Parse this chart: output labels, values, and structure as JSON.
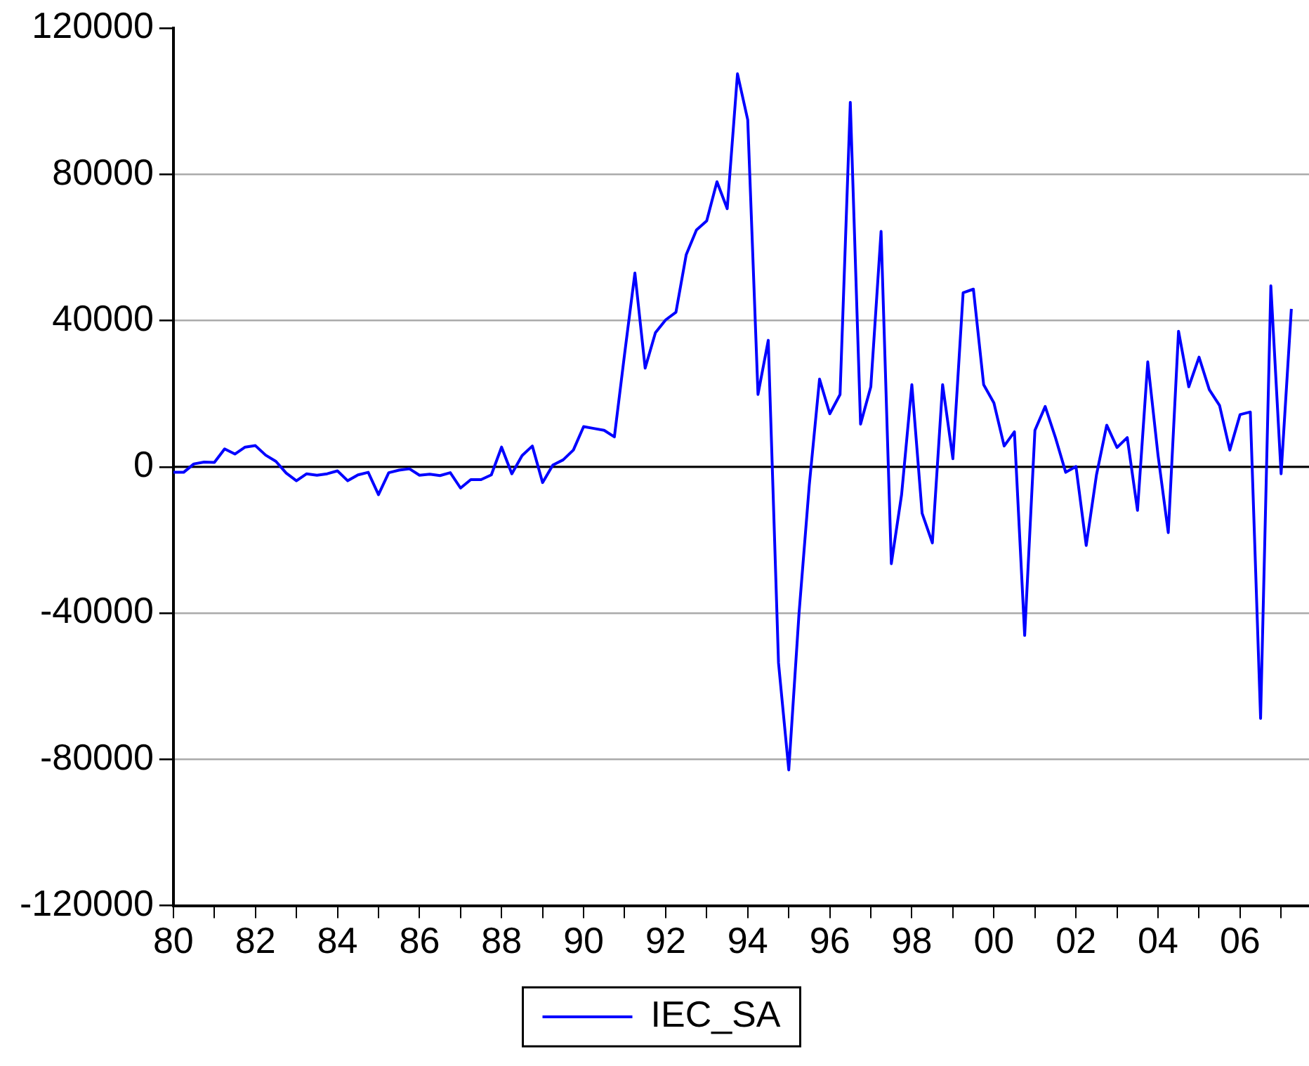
{
  "chart_data": {
    "type": "line",
    "x": [
      1980,
      1980.25,
      1980.5,
      1980.75,
      1981,
      1981.25,
      1981.5,
      1981.75,
      1982,
      1982.25,
      1982.5,
      1982.75,
      1983,
      1983.25,
      1983.5,
      1983.75,
      1984,
      1984.25,
      1984.5,
      1984.75,
      1985,
      1985.25,
      1985.5,
      1985.75,
      1986,
      1986.25,
      1986.5,
      1986.75,
      1987,
      1987.25,
      1987.5,
      1987.75,
      1988,
      1988.25,
      1988.5,
      1988.75,
      1989,
      1989.25,
      1989.5,
      1989.75,
      1990,
      1990.25,
      1990.5,
      1990.75,
      1991,
      1991.25,
      1991.5,
      1991.75,
      1992,
      1992.25,
      1992.5,
      1992.75,
      1993,
      1993.25,
      1993.5,
      1993.75,
      1994,
      1994.25,
      1994.5,
      1994.75,
      1995,
      1995.25,
      1995.5,
      1995.75,
      1996,
      1996.25,
      1996.5,
      1996.75,
      1997,
      1997.25,
      1997.5,
      1997.75,
      1998,
      1998.25,
      1998.5,
      1998.75,
      1999,
      1999.25,
      1999.5,
      1999.75,
      2000,
      2000.25,
      2000.5,
      2000.75,
      2001,
      2001.25,
      2001.5,
      2001.75,
      2002,
      2002.25,
      2002.5,
      2002.75,
      2003,
      2003.25,
      2003.5,
      2003.75,
      2004,
      2004.25,
      2004.5,
      2004.75,
      2005,
      2005.25,
      2005.5,
      2005.75,
      2006,
      2006.25,
      2006.5,
      2006.75,
      2007,
      2007.25
    ],
    "series": [
      {
        "name": "IEC_SA",
        "color": "#0000ff",
        "values": [
          -1500,
          -1500,
          800,
          1300,
          1200,
          4900,
          3500,
          5400,
          5800,
          3200,
          1500,
          -1700,
          -3800,
          -1900,
          -2300,
          -1900,
          -1100,
          -3800,
          -2200,
          -1500,
          -7600,
          -1600,
          -900,
          -500,
          -2300,
          -2000,
          -2400,
          -1600,
          -5800,
          -3500,
          -3500,
          -2200,
          5400,
          -1900,
          3100,
          5700,
          -4300,
          500,
          1900,
          4600,
          11000,
          10500,
          10000,
          8200,
          31000,
          53000,
          27000,
          36700,
          40200,
          42300,
          58000,
          64800,
          67300,
          78000,
          70600,
          107500,
          94900,
          19800,
          34600,
          -53600,
          -82900,
          -40100,
          -5000,
          24000,
          14500,
          19800,
          99700,
          11700,
          21900,
          64400,
          -26500,
          -7600,
          22500,
          -12700,
          -20800,
          22500,
          2200,
          47600,
          48600,
          22500,
          17500,
          5700,
          9600,
          -46100,
          10000,
          16500,
          8000,
          -1500,
          100,
          -21500,
          -2200,
          11400,
          5300,
          8000,
          -11900,
          28700,
          3200,
          -18000,
          37100,
          21900,
          30000,
          21100,
          16800,
          4600,
          14300,
          15000,
          -68800,
          49500,
          -1900,
          43200
        ]
      }
    ],
    "xlim": [
      1980,
      2007.68
    ],
    "xticks": [
      {
        "value": 1980,
        "label": "80"
      },
      {
        "value": 1981,
        "label": null
      },
      {
        "value": 1982,
        "label": "82"
      },
      {
        "value": 1983,
        "label": null
      },
      {
        "value": 1984,
        "label": "84"
      },
      {
        "value": 1985,
        "label": null
      },
      {
        "value": 1986,
        "label": "86"
      },
      {
        "value": 1987,
        "label": null
      },
      {
        "value": 1988,
        "label": "88"
      },
      {
        "value": 1989,
        "label": null
      },
      {
        "value": 1990,
        "label": "90"
      },
      {
        "value": 1991,
        "label": null
      },
      {
        "value": 1992,
        "label": "92"
      },
      {
        "value": 1993,
        "label": null
      },
      {
        "value": 1994,
        "label": "94"
      },
      {
        "value": 1995,
        "label": null
      },
      {
        "value": 1996,
        "label": "96"
      },
      {
        "value": 1997,
        "label": null
      },
      {
        "value": 1998,
        "label": "98"
      },
      {
        "value": 1999,
        "label": null
      },
      {
        "value": 2000,
        "label": "00"
      },
      {
        "value": 2001,
        "label": null
      },
      {
        "value": 2002,
        "label": "02"
      },
      {
        "value": 2003,
        "label": null
      },
      {
        "value": 2004,
        "label": "04"
      },
      {
        "value": 2005,
        "label": null
      },
      {
        "value": 2006,
        "label": "06"
      },
      {
        "value": 2007,
        "label": null
      }
    ],
    "ylim": [
      -120000,
      120000
    ],
    "yticks": [
      -120000,
      -80000,
      -40000,
      0,
      40000,
      80000,
      120000
    ],
    "grid": "y",
    "ref_lines": [
      {
        "axis": "y",
        "value": 0,
        "color": "#000000",
        "line_style": "solid"
      }
    ],
    "legend": "bottom",
    "marker": "none",
    "line_style": "solid"
  }
}
